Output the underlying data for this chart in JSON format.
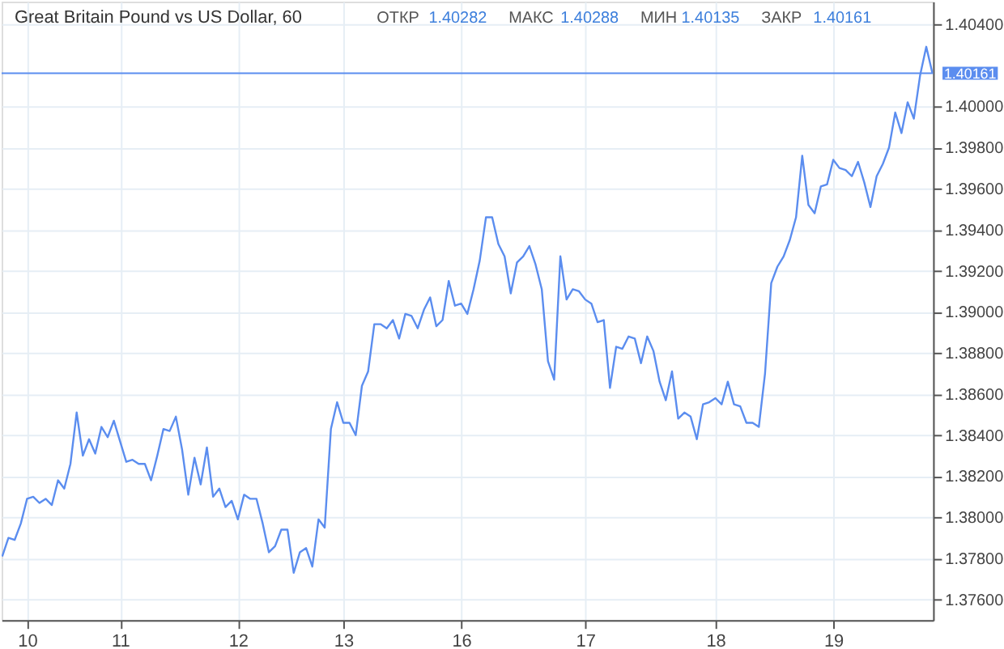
{
  "chart_data": {
    "type": "line",
    "title": "Great Britain Pound vs US Dollar, 60",
    "annotations": [
      "ОТКР 1.40282",
      "МАКС 1.40288",
      "МИН 1.40135",
      "ЗАКР 1.40161"
    ],
    "categories": [
      null,
      null,
      null,
      null,
      "10",
      null,
      null,
      null,
      null,
      null,
      null,
      null,
      null,
      null,
      null,
      null,
      null,
      null,
      null,
      "11",
      null,
      null,
      null,
      null,
      null,
      null,
      null,
      null,
      null,
      null,
      null,
      null,
      null,
      null,
      null,
      null,
      null,
      null,
      "12",
      null,
      null,
      null,
      null,
      null,
      null,
      null,
      null,
      null,
      null,
      null,
      null,
      null,
      null,
      null,
      null,
      "13",
      null,
      null,
      null,
      null,
      null,
      null,
      null,
      null,
      null,
      null,
      null,
      null,
      null,
      null,
      null,
      null,
      null,
      null,
      "16",
      null,
      null,
      null,
      null,
      null,
      null,
      null,
      null,
      null,
      null,
      null,
      null,
      null,
      null,
      null,
      null,
      null,
      null,
      null,
      "17",
      null,
      null,
      null,
      null,
      null,
      null,
      null,
      null,
      null,
      null,
      null,
      null,
      null,
      null,
      null,
      null,
      null,
      null,
      null,
      null,
      "18",
      null,
      null,
      null,
      null,
      null,
      null,
      null,
      null,
      null,
      null,
      null,
      null,
      null,
      null,
      null,
      null,
      null,
      null,
      "19",
      null,
      null,
      null,
      null,
      null,
      null,
      null,
      null,
      null,
      null,
      null,
      null,
      null,
      null,
      null,
      null
    ],
    "series": [
      {
        "color": "#5b8def",
        "values": [
          1.3781,
          1.379,
          1.3789,
          1.3797,
          1.3809,
          1.381,
          1.3807,
          1.3809,
          1.3806,
          1.3818,
          1.3814,
          1.3826,
          1.3851,
          1.383,
          1.3838,
          1.3831,
          1.3844,
          1.3839,
          1.3847,
          1.3837,
          1.3827,
          1.3828,
          1.3826,
          1.3826,
          1.3818,
          1.383,
          1.3843,
          1.3842,
          1.3849,
          1.3833,
          1.3811,
          1.3829,
          1.3816,
          1.3834,
          1.381,
          1.3814,
          1.3805,
          1.3808,
          1.3799,
          1.3811,
          1.3809,
          1.3809,
          1.3797,
          1.3783,
          1.3786,
          1.3794,
          1.3794,
          1.3773,
          1.3783,
          1.3785,
          1.3776,
          1.3799,
          1.3795,
          1.3843,
          1.3856,
          1.3846,
          1.3846,
          1.384,
          1.3864,
          1.3871,
          1.3894,
          1.3894,
          1.3892,
          1.3896,
          1.3887,
          1.3899,
          1.3898,
          1.3892,
          1.3901,
          1.3907,
          1.3893,
          1.3896,
          1.3915,
          1.3903,
          1.3904,
          1.3899,
          1.3911,
          1.3925,
          1.3946,
          1.3946,
          1.3933,
          1.3927,
          1.3909,
          1.3924,
          1.3927,
          1.3932,
          1.3923,
          1.3911,
          1.3876,
          1.3867,
          1.3927,
          1.3906,
          1.3911,
          1.391,
          1.3906,
          1.3904,
          1.3895,
          1.3896,
          1.3863,
          1.3883,
          1.3882,
          1.3888,
          1.3887,
          1.3875,
          1.3888,
          1.3881,
          1.3866,
          1.3857,
          1.3871,
          1.3848,
          1.3851,
          1.3849,
          1.3838,
          1.3855,
          1.3856,
          1.3858,
          1.3855,
          1.3866,
          1.3855,
          1.3854,
          1.3846,
          1.3846,
          1.3844,
          1.387,
          1.3914,
          1.3922,
          1.3927,
          1.3935,
          1.3946,
          1.3976,
          1.3952,
          1.3948,
          1.3961,
          1.3962,
          1.3974,
          1.397,
          1.3969,
          1.3966,
          1.3973,
          1.3963,
          1.3951,
          1.3966,
          1.3972,
          1.398,
          1.3997,
          1.3987,
          1.4002,
          1.3994,
          1.4015,
          1.4029,
          1.4016
        ]
      }
    ],
    "ylim": [
      1.375,
      1.4051
    ],
    "yticks": [
      {
        "value": 1.376,
        "label": "1.37600"
      },
      {
        "value": 1.378,
        "label": "1.37800"
      },
      {
        "value": 1.38,
        "label": "1.38000"
      },
      {
        "value": 1.382,
        "label": "1.38200"
      },
      {
        "value": 1.384,
        "label": "1.38400"
      },
      {
        "value": 1.386,
        "label": "1.38600"
      },
      {
        "value": 1.388,
        "label": "1.38800"
      },
      {
        "value": 1.39,
        "label": "1.39000"
      },
      {
        "value": 1.392,
        "label": "1.39200"
      },
      {
        "value": 1.394,
        "label": "1.39400"
      },
      {
        "value": 1.396,
        "label": "1.39600"
      },
      {
        "value": 1.398,
        "label": "1.39800"
      },
      {
        "value": 1.4,
        "label": "1.40000"
      },
      {
        "value": 1.404,
        "label": "1.40400"
      }
    ],
    "ref_lines": [
      {
        "axis": "y",
        "value": 1.40161,
        "label": "1.40161",
        "color": "#5b8def"
      }
    ],
    "grid": true
  }
}
